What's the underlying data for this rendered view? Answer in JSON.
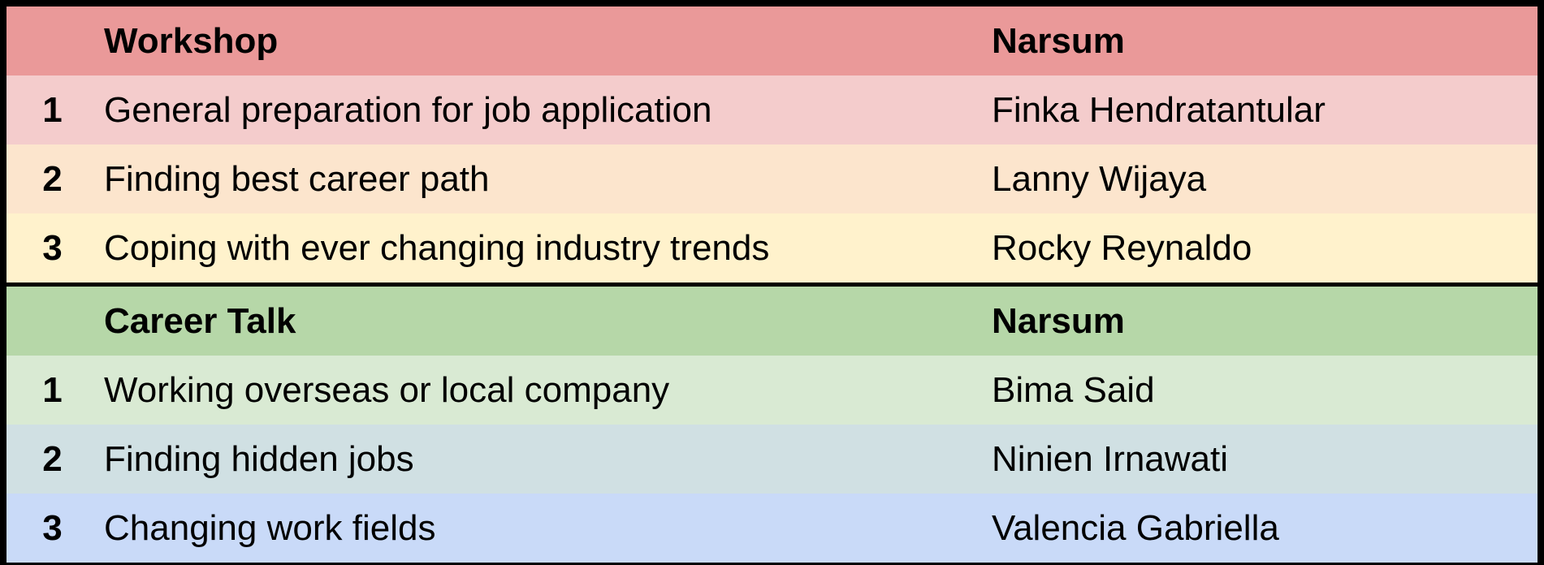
{
  "sections": [
    {
      "header": {
        "number": "",
        "topic": "Workshop",
        "speaker": "Narsum",
        "color": "#ea9999"
      },
      "rows": [
        {
          "number": "1",
          "topic": "General preparation for job application",
          "speaker": "Finka Hendratantular",
          "color": "#f4cccc"
        },
        {
          "number": "2",
          "topic": "Finding best career path",
          "speaker": "Lanny Wijaya",
          "color": "#fce5cd"
        },
        {
          "number": "3",
          "topic": "Coping with ever changing industry trends",
          "speaker": "Rocky Reynaldo",
          "color": "#fff2cc"
        }
      ]
    },
    {
      "header": {
        "number": "",
        "topic": "Career Talk",
        "speaker": "Narsum",
        "color": "#b6d7a8"
      },
      "rows": [
        {
          "number": "1",
          "topic": "Working overseas or local company",
          "speaker": "Bima Said",
          "color": "#d9ead3"
        },
        {
          "number": "2",
          "topic": "Finding hidden jobs",
          "speaker": "Ninien Irnawati",
          "color": "#d0e0e3"
        },
        {
          "number": "3",
          "topic": "Changing work fields",
          "speaker": "Valencia Gabriella",
          "color": "#c9daf8"
        }
      ]
    }
  ],
  "border_color": "#000000"
}
